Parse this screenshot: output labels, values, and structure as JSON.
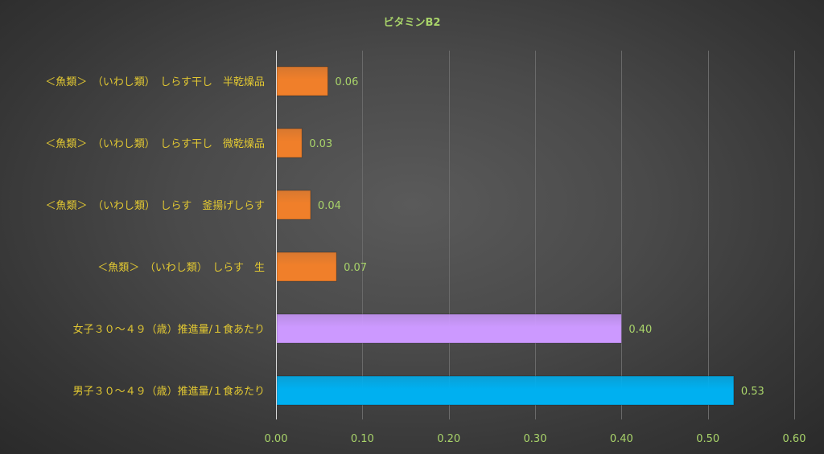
{
  "chart_data": {
    "type": "bar",
    "orientation": "horizontal",
    "title": "ビタミンB2",
    "categories": [
      "＜魚類＞　（いわし類）　しらす干し　半乾燥品",
      "＜魚類＞　（いわし類）　しらす干し　微乾燥品",
      "＜魚類＞　（いわし類）　しらす　釜揚げしらす",
      "＜魚類＞　（いわし類）　しらす　生",
      "女子３０～４９（歳）推進量/１食あたり",
      "男子３０～４９（歳）推進量/１食あたり"
    ],
    "values": [
      0.06,
      0.03,
      0.04,
      0.07,
      0.4,
      0.53
    ],
    "value_labels": [
      "0.06",
      "0.03",
      "0.04",
      "0.07",
      "0.40",
      "0.53"
    ],
    "bar_colors": [
      "#f07f2a",
      "#f07f2a",
      "#f07f2a",
      "#f07f2a",
      "#cc99ff",
      "#00b0f0"
    ],
    "xlim": [
      0,
      0.6
    ],
    "xticks": [
      "0.00",
      "0.10",
      "0.20",
      "0.30",
      "0.40",
      "0.50",
      "0.60"
    ],
    "xtick_values": [
      0,
      0.1,
      0.2,
      0.3,
      0.4,
      0.5,
      0.6
    ],
    "grid": true,
    "legend": "none",
    "colors": {
      "title": "#a9d46a",
      "category_labels": "#e2c832",
      "value_labels": "#a9d46a",
      "tick_labels": "#a9d46a",
      "gridlines": "#6a6a6a",
      "background": "#444444"
    }
  }
}
